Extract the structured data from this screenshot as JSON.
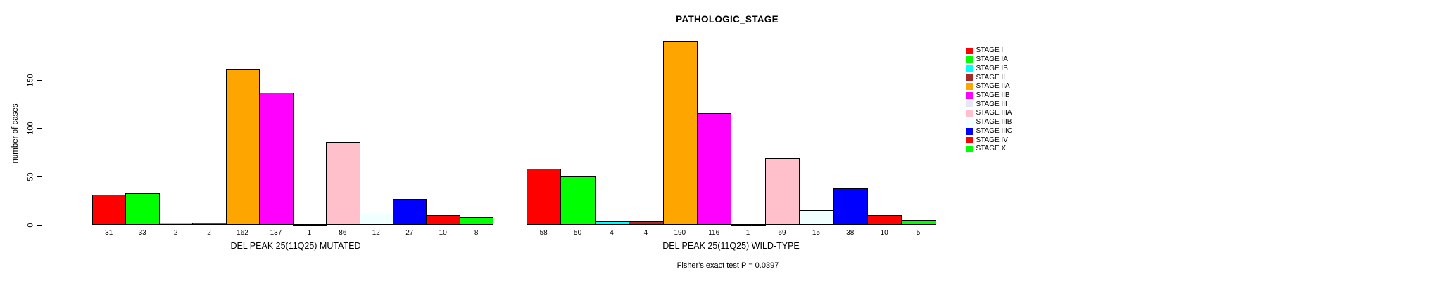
{
  "title": "PATHOLOGIC_STAGE",
  "footnote": "Fisher's exact test P = 0.0397",
  "y_axis": {
    "label": "number of cases",
    "ticks": [
      0,
      50,
      100,
      150
    ]
  },
  "legend": [
    {
      "label": "STAGE I",
      "color": "#FF0000"
    },
    {
      "label": "STAGE IA",
      "color": "#00FF00"
    },
    {
      "label": "STAGE IB",
      "color": "#00FFFF"
    },
    {
      "label": "STAGE II",
      "color": "#A52A2A"
    },
    {
      "label": "STAGE IIA",
      "color": "#FFA500"
    },
    {
      "label": "STAGE IIB",
      "color": "#FF00FF"
    },
    {
      "label": "STAGE III",
      "color": "#E6E6FA"
    },
    {
      "label": "STAGE IIIA",
      "color": "#FFC0CB"
    },
    {
      "label": "STAGE IIIB",
      "color": "#F0FFFF"
    },
    {
      "label": "STAGE IIIC",
      "color": "#0000FF"
    },
    {
      "label": "STAGE IV",
      "color": "#FF0000"
    },
    {
      "label": "STAGE X",
      "color": "#00FF00"
    }
  ],
  "chart_data": [
    {
      "type": "bar",
      "group_label": "DEL PEAK 25(11Q25) MUTATED",
      "categories": [
        "STAGE I",
        "STAGE IA",
        "STAGE IB",
        "STAGE II",
        "STAGE IIA",
        "STAGE IIB",
        "STAGE III",
        "STAGE IIIA",
        "STAGE IIIB",
        "STAGE IIIC",
        "STAGE IV",
        "STAGE X"
      ],
      "values": [
        31,
        33,
        2,
        2,
        162,
        137,
        1,
        86,
        12,
        27,
        10,
        8
      ],
      "bar_colors": [
        "#FF0000",
        "#00FF00",
        "#00FFFF",
        "#A52A2A",
        "#FFA500",
        "#FF00FF",
        "#E6E6FA",
        "#FFC0CB",
        "#F0FFFF",
        "#0000FF",
        "#FF0000",
        "#00FF00"
      ],
      "ylabel": "number of cases",
      "ylim": [
        0,
        195
      ],
      "yticks": [
        0,
        50,
        100,
        150
      ],
      "grid": false,
      "legend_position": "right"
    },
    {
      "type": "bar",
      "group_label": "DEL PEAK 25(11Q25) WILD-TYPE",
      "categories": [
        "STAGE I",
        "STAGE IA",
        "STAGE IB",
        "STAGE II",
        "STAGE IIA",
        "STAGE IIB",
        "STAGE III",
        "STAGE IIIA",
        "STAGE IIIB",
        "STAGE IIIC",
        "STAGE IV",
        "STAGE X"
      ],
      "values": [
        58,
        50,
        4,
        4,
        190,
        116,
        1,
        69,
        15,
        38,
        10,
        5
      ],
      "bar_colors": [
        "#FF0000",
        "#00FF00",
        "#00FFFF",
        "#A52A2A",
        "#FFA500",
        "#FF00FF",
        "#E6E6FA",
        "#FFC0CB",
        "#F0FFFF",
        "#0000FF",
        "#FF0000",
        "#00FF00"
      ],
      "ylabel": "number of cases",
      "ylim": [
        0,
        195
      ],
      "yticks": [
        0,
        50,
        100,
        150
      ],
      "grid": false,
      "legend_position": "right"
    }
  ]
}
